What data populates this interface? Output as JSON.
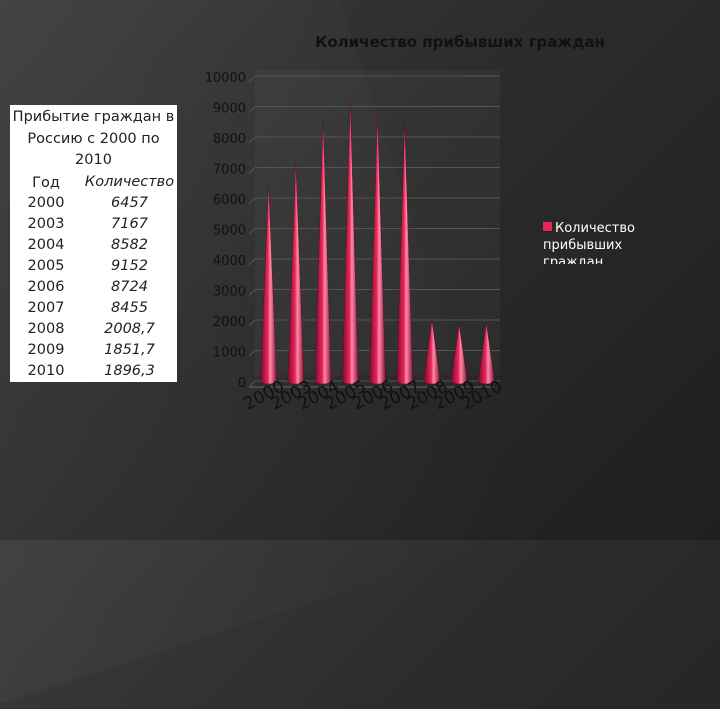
{
  "chart_data": {
    "type": "bar",
    "title": "Количество прибывших граждан",
    "categories": [
      "2000",
      "2003",
      "2004",
      "2005",
      "2006",
      "2007",
      "2008",
      "2009",
      "2010"
    ],
    "series": [
      {
        "name": "Количество прибывших граждан",
        "values": [
          6457,
          7167,
          8582,
          9152,
          8724,
          8455,
          2008.7,
          1851.7,
          1896.3
        ]
      }
    ],
    "ylim": [
      0,
      10000
    ],
    "yticks": [
      "0",
      "1000",
      "2000",
      "3000",
      "4000",
      "5000",
      "6000",
      "7000",
      "8000",
      "9000",
      "10000"
    ],
    "legend_position": "right",
    "grid": true,
    "color": "#e8265a"
  },
  "table": {
    "caption": "Прибытие граждан в Россию с 2000 по 2010",
    "col_year": "Год",
    "col_qty": "Количество",
    "rows": [
      {
        "year": "2000",
        "qty": "6457"
      },
      {
        "year": "2003",
        "qty": "7167"
      },
      {
        "year": "2004",
        "qty": "8582"
      },
      {
        "year": "2005",
        "qty": "9152"
      },
      {
        "year": "2006",
        "qty": "8724"
      },
      {
        "year": "2007",
        "qty": "8455"
      },
      {
        "year": "2008",
        "qty": "2008,7"
      },
      {
        "year": "2009",
        "qty": "1851,7"
      },
      {
        "year": "2010",
        "qty": "1896,3"
      }
    ]
  }
}
